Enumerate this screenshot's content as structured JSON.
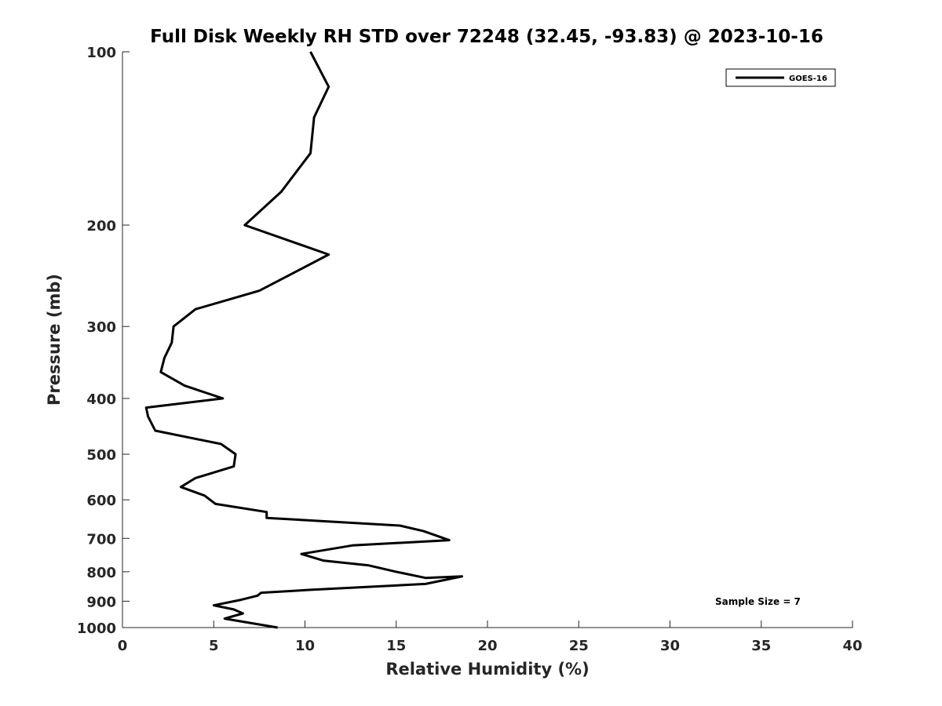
{
  "chart_data": {
    "type": "line",
    "title": "Full Disk Weekly RH STD over 72248 (32.45, -93.83) @ 2023-10-16",
    "xlabel": "Relative Humidity (%)",
    "ylabel": "Pressure (mb)",
    "xlim": [
      0,
      40
    ],
    "ylim": [
      100,
      1000
    ],
    "y_scale": "log",
    "y_reversed": true,
    "x_ticks": [
      "0",
      "5",
      "10",
      "15",
      "20",
      "25",
      "30",
      "35",
      "40"
    ],
    "y_ticks": [
      "100",
      "200",
      "300",
      "400",
      "500",
      "600",
      "700",
      "800",
      "900",
      "1000"
    ],
    "grid": false,
    "legend_position": "top-right",
    "annotation": "Sample Size = 7",
    "series": [
      {
        "name": "GOES-16",
        "color": "#000000",
        "x": [
          10.3,
          11.3,
          10.5,
          10.3,
          8.7,
          6.7,
          11.3,
          7.5,
          4.0,
          2.8,
          2.7,
          2.3,
          2.1,
          3.4,
          5.5,
          1.3,
          1.4,
          1.8,
          5.4,
          6.2,
          6.1,
          4.0,
          3.2,
          4.5,
          5.1,
          7.9,
          7.9,
          15.2,
          16.5,
          17.9,
          12.6,
          9.8,
          11.0,
          13.5,
          15.0,
          16.6,
          18.6,
          16.6,
          10.3,
          7.6,
          7.4,
          6.5,
          5.0,
          6.1,
          6.6,
          5.6,
          8.5
        ],
        "y": [
          100,
          115,
          130,
          150,
          175,
          200,
          225,
          260,
          280,
          300,
          320,
          340,
          360,
          380,
          400,
          415,
          430,
          455,
          480,
          500,
          525,
          550,
          570,
          590,
          610,
          630,
          645,
          665,
          680,
          705,
          720,
          745,
          765,
          780,
          800,
          820,
          815,
          840,
          860,
          870,
          880,
          895,
          915,
          930,
          945,
          965,
          1000
        ]
      }
    ]
  }
}
